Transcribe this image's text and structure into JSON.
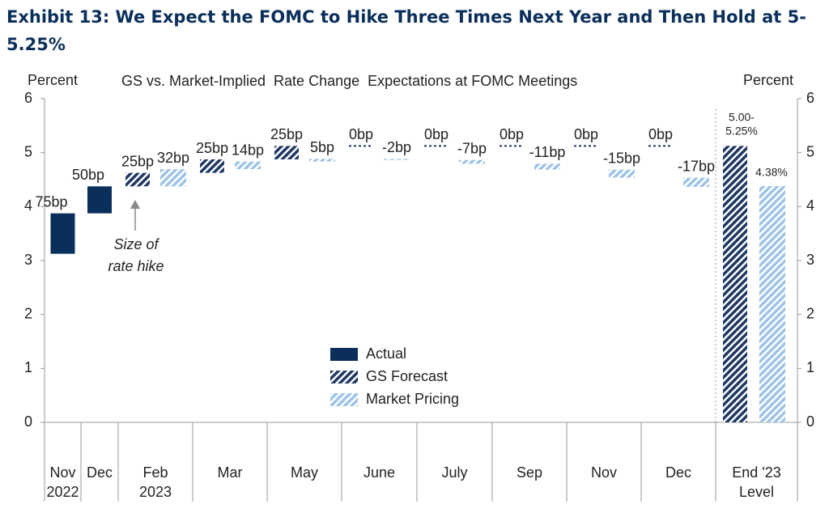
{
  "chart_data": {
    "type": "waterfall",
    "title": [
      "Exhibit 13: We Expect the FOMC to Hike Three Times Next Year and Then Hold at 5-",
      "5.25%"
    ],
    "subtitle": "GS vs. Market-Implied  Rate Change  Expectations at FOMC Meetings",
    "y_label": "Percent",
    "y2_label": "Percent",
    "annotation": [
      "Size of",
      "rate hike"
    ],
    "categories": [
      [
        "Nov",
        "2022"
      ],
      [
        "Dec"
      ],
      [
        "Feb",
        "2023"
      ],
      [
        "Mar"
      ],
      [
        "May"
      ],
      [
        "June"
      ],
      [
        "July"
      ],
      [
        "Sep"
      ],
      [
        "Nov"
      ],
      [
        "Dec"
      ]
    ],
    "start_level": 3.125,
    "series": [
      {
        "name": "Actual",
        "color": "#0b2f5b",
        "values": [
          0.75,
          0.5,
          null,
          null,
          null,
          null,
          null,
          null,
          null,
          null
        ],
        "value_labels": [
          "75bp",
          "50bp",
          null,
          null,
          null,
          null,
          null,
          null,
          null,
          null
        ]
      },
      {
        "name": "GS Forecast",
        "color": "#1f3864",
        "values": [
          null,
          null,
          0.25,
          0.25,
          0.25,
          0,
          0,
          0,
          0,
          0
        ],
        "value_labels": [
          null,
          null,
          "25bp",
          "25bp",
          "25bp",
          "0bp",
          "0bp",
          "0bp",
          "0bp",
          "0bp"
        ]
      },
      {
        "name": "Market Pricing",
        "color": "#9dc3e6",
        "values": [
          null,
          null,
          0.32,
          0.14,
          0.05,
          -0.02,
          -0.07,
          -0.11,
          -0.15,
          -0.17
        ],
        "value_labels": [
          null,
          null,
          "32bp",
          "14bp",
          "5bp",
          "-2bp",
          "-7bp",
          "-11bp",
          "-15bp",
          "-17bp"
        ]
      }
    ],
    "end_level": {
      "category": [
        "End '23",
        "Level"
      ],
      "values": [
        5.125,
        4.38
      ],
      "value_labels": [
        [
          "5.00-",
          "5.25%"
        ],
        [
          "4.38%"
        ]
      ]
    },
    "ylim": [
      0,
      6
    ],
    "yticks": [
      0,
      1,
      2,
      3,
      4,
      5,
      6
    ],
    "y2lim": [
      0,
      6
    ],
    "y2ticks": [
      0,
      1,
      2,
      3,
      4,
      5,
      6
    ]
  }
}
